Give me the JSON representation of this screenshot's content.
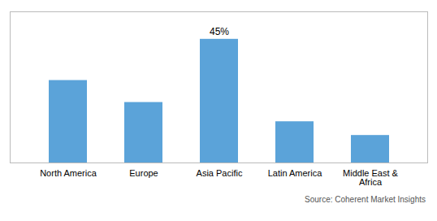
{
  "chart_data": {
    "type": "bar",
    "categories": [
      "North America",
      "Europe",
      "Asia Pacific",
      "Latin America",
      "Middle East &\nAfrica"
    ],
    "values": [
      30,
      22,
      45,
      15,
      10
    ],
    "color": "#5ba3d9",
    "ylim": [
      0,
      55
    ],
    "tick_labels": "x",
    "annotations": [
      {
        "category": "Asia Pacific",
        "value": 45,
        "text": "45%"
      }
    ],
    "caption": "Source: Coherent Market Insights"
  }
}
